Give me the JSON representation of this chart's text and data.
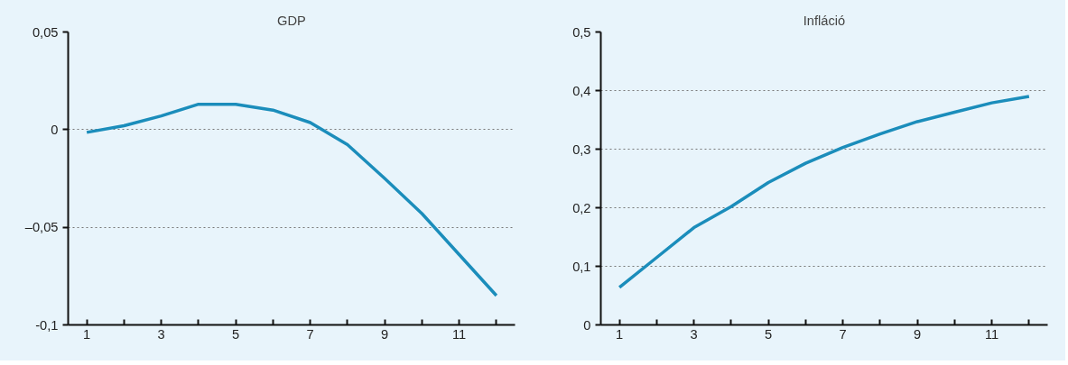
{
  "chart_data": [
    {
      "type": "line",
      "title": "GDP",
      "x": [
        1,
        2,
        3,
        4,
        5,
        6,
        7,
        8,
        9,
        10,
        11,
        12
      ],
      "series": [
        {
          "color": "#1b8dbb",
          "values": [
            -0.0014,
            0.002,
            0.007,
            0.013,
            0.013,
            0.01,
            0.0036,
            -0.0077,
            -0.025,
            -0.043,
            -0.064,
            -0.085
          ]
        }
      ],
      "xlim": [
        0.5,
        12.5
      ],
      "xticks": [
        1,
        {
          "value": 2,
          "label": null
        },
        3,
        {
          "value": 4,
          "label": null
        },
        5,
        {
          "value": 6,
          "label": null
        },
        7,
        {
          "value": 8,
          "label": null
        },
        9,
        {
          "value": 10,
          "label": null
        },
        11,
        {
          "value": 12,
          "label": null
        }
      ],
      "ylim": [
        -0.1,
        0.05
      ],
      "yticks": [
        {
          "value": -0.1,
          "label": "-0,1"
        },
        {
          "value": -0.05,
          "label": "–0,05"
        },
        {
          "value": 0,
          "label": "0"
        },
        {
          "value": 0.05,
          "label": "0,05"
        }
      ],
      "grid": "y",
      "marker": "none",
      "line_style": "solid"
    },
    {
      "type": "line",
      "title": "Infláció",
      "x": [
        1,
        2,
        3,
        4,
        5,
        6,
        7,
        8,
        9,
        10,
        11,
        12
      ],
      "series": [
        {
          "color": "#1b8dbb",
          "values": [
            0.064,
            0.115,
            0.166,
            0.202,
            0.243,
            0.276,
            0.303,
            0.326,
            0.347,
            0.363,
            0.379,
            0.39
          ]
        }
      ],
      "xlim": [
        0.5,
        12.5
      ],
      "xticks": [
        1,
        {
          "value": 2,
          "label": null
        },
        3,
        {
          "value": 4,
          "label": null
        },
        5,
        {
          "value": 6,
          "label": null
        },
        7,
        {
          "value": 8,
          "label": null
        },
        9,
        {
          "value": 10,
          "label": null
        },
        11,
        {
          "value": 12,
          "label": null
        }
      ],
      "ylim": [
        0,
        0.5
      ],
      "yticks": [
        {
          "value": 0,
          "label": "0"
        },
        {
          "value": 0.1,
          "label": "0,1"
        },
        {
          "value": 0.2,
          "label": "0,2"
        },
        {
          "value": 0.3,
          "label": "0,3"
        },
        {
          "value": 0.4,
          "label": "0,4"
        },
        {
          "value": 0.5,
          "label": "0,5"
        }
      ],
      "grid": "y",
      "marker": "none",
      "line_style": "solid"
    }
  ]
}
